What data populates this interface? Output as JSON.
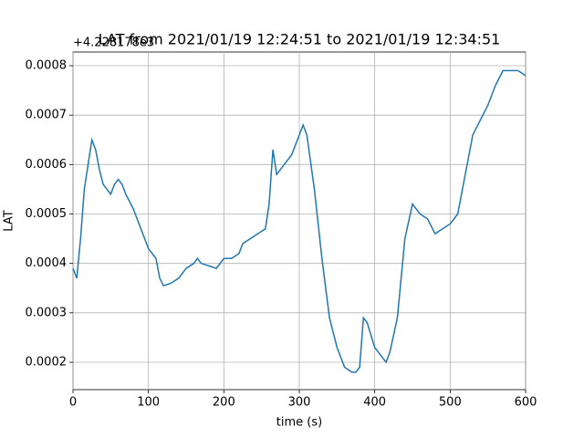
{
  "chart_data": {
    "type": "line",
    "title": "LAT from 2021/01/19 12:24:51 to 2021/01/19 12:34:51",
    "offset_text": "+4.228178e3",
    "xlabel": "time (s)",
    "ylabel": "LAT",
    "x": [
      0,
      5,
      10,
      15,
      20,
      25,
      30,
      35,
      40,
      45,
      50,
      55,
      60,
      65,
      70,
      80,
      90,
      100,
      110,
      115,
      120,
      130,
      140,
      150,
      160,
      165,
      170,
      180,
      190,
      200,
      210,
      220,
      225,
      235,
      245,
      255,
      260,
      265,
      270,
      280,
      290,
      300,
      305,
      310,
      320,
      330,
      340,
      350,
      360,
      370,
      375,
      380,
      385,
      390,
      400,
      410,
      415,
      420,
      430,
      440,
      450,
      460,
      470,
      480,
      490,
      500,
      510,
      520,
      530,
      540,
      550,
      560,
      570,
      580,
      590,
      600
    ],
    "series": [
      {
        "name": "LAT",
        "color": "#1f77b4",
        "values": [
          0.00039,
          0.00037,
          0.00045,
          0.00055,
          0.0006,
          0.00065,
          0.00063,
          0.00059,
          0.00056,
          0.00055,
          0.00054,
          0.00056,
          0.00057,
          0.00056,
          0.00054,
          0.00051,
          0.00047,
          0.00043,
          0.00041,
          0.00037,
          0.000355,
          0.00036,
          0.00037,
          0.00039,
          0.0004,
          0.00041,
          0.0004,
          0.000395,
          0.00039,
          0.00041,
          0.00041,
          0.00042,
          0.00044,
          0.00045,
          0.00046,
          0.00047,
          0.00052,
          0.00063,
          0.00058,
          0.0006,
          0.00062,
          0.00066,
          0.00068,
          0.00066,
          0.00055,
          0.00041,
          0.00029,
          0.00023,
          0.00019,
          0.00018,
          0.00018,
          0.00019,
          0.00029,
          0.00028,
          0.00023,
          0.00021,
          0.0002,
          0.00022,
          0.00029,
          0.00045,
          0.00052,
          0.0005,
          0.00049,
          0.00046,
          0.00047,
          0.00048,
          0.0005,
          0.00058,
          0.00066,
          0.00069,
          0.00072,
          0.00076,
          0.00079,
          0.00079,
          0.00079,
          0.00078
        ]
      }
    ],
    "xlim": [
      0,
      600
    ],
    "ylim": [
      0.0001446,
      0.0008277
    ],
    "xticks": [
      0,
      100,
      200,
      300,
      400,
      500,
      600
    ],
    "yticks": [
      0.0002,
      0.0003,
      0.0004,
      0.0005,
      0.0006,
      0.0007,
      0.0008
    ],
    "grid": true
  }
}
